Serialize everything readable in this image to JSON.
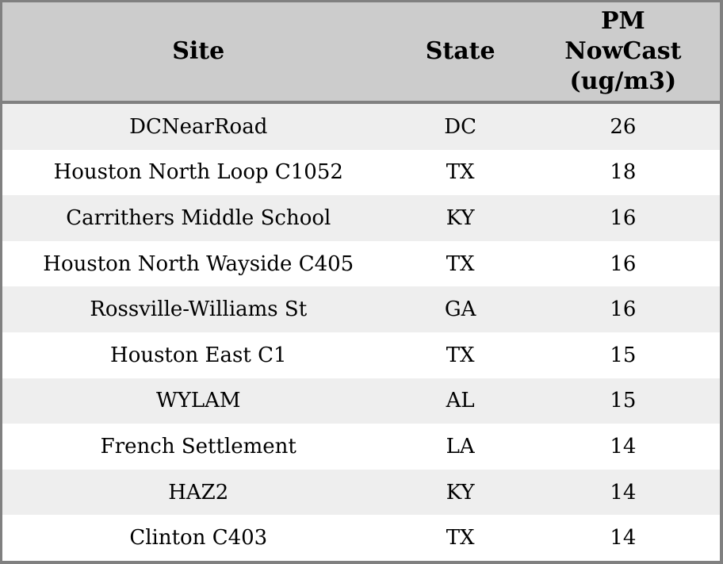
{
  "chart_data": {
    "type": "table",
    "columns": [
      "Site",
      "State",
      "PM NowCast (ug/m3)"
    ],
    "rows": [
      [
        "DCNearRoad",
        "DC",
        26
      ],
      [
        "Houston North Loop C1052",
        "TX",
        18
      ],
      [
        "Carrithers Middle School",
        "KY",
        16
      ],
      [
        "Houston North Wayside C405",
        "TX",
        16
      ],
      [
        "Rossville-Williams St",
        "GA",
        16
      ],
      [
        "Houston East C1",
        "TX",
        15
      ],
      [
        "WYLAM",
        "AL",
        15
      ],
      [
        "French Settlement",
        "LA",
        14
      ],
      [
        "HAZ2",
        "KY",
        14
      ],
      [
        "Clinton C403",
        "TX",
        14
      ]
    ]
  },
  "colors": {
    "header_bg": "#cccccc",
    "row_alt_bg": "#eeeeee",
    "row_bg": "#ffffff",
    "border": "#808080",
    "text": "#000000"
  }
}
